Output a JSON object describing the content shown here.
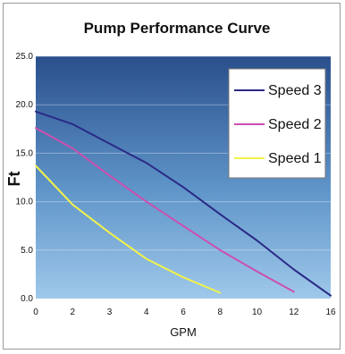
{
  "chart_data": {
    "type": "line",
    "title": "Pump Performance Curve",
    "xlabel": "GPM",
    "ylabel": "Ft",
    "x_ticks": [
      "0",
      "2",
      "3",
      "4",
      "6",
      "8",
      "10",
      "12",
      "16"
    ],
    "y_ticks": [
      "0.0",
      "5.0",
      "10.0",
      "15.0",
      "20.0",
      "25.0"
    ],
    "ylim": [
      0,
      25
    ],
    "grid": true,
    "legend_position": "top-right",
    "series": [
      {
        "name": "Speed 3",
        "color": "#2a2a86",
        "x": [
          0,
          2,
          3,
          4,
          6,
          8,
          10,
          12,
          16
        ],
        "y": [
          19.3,
          18.0,
          16.0,
          14.0,
          11.5,
          8.7,
          6.0,
          3.0,
          0.3
        ]
      },
      {
        "name": "Speed 2",
        "color": "#cc4fb0",
        "x": [
          0,
          2,
          3,
          4,
          6,
          8,
          10,
          12
        ],
        "y": [
          17.6,
          15.5,
          12.7,
          10.0,
          7.5,
          5.0,
          2.8,
          0.7
        ]
      },
      {
        "name": "Speed 1",
        "color": "#f2f24a",
        "x": [
          0,
          2,
          3,
          4,
          6,
          8
        ],
        "y": [
          13.7,
          9.7,
          6.8,
          4.1,
          2.2,
          0.6
        ]
      }
    ]
  }
}
